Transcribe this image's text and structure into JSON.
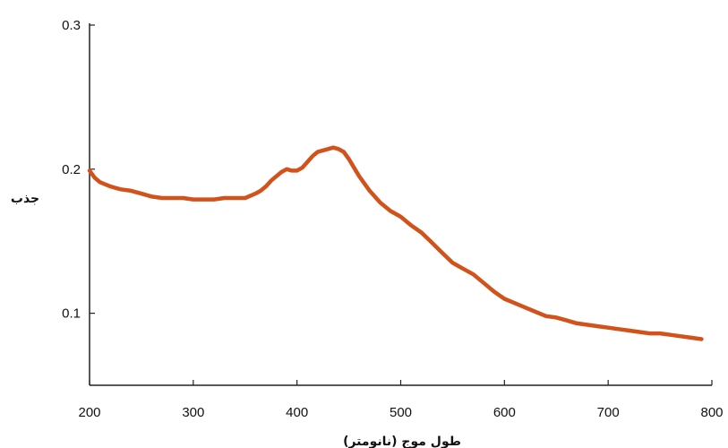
{
  "chart_data": {
    "type": "line",
    "title": "",
    "xlabel": "طول موج (نانومتر)",
    "ylabel": "جذب",
    "xlim": [
      200,
      800
    ],
    "ylim": [
      0.05,
      0.3
    ],
    "x_ticks": [
      200,
      300,
      400,
      500,
      600,
      700,
      800
    ],
    "x_tick_labels": [
      "200",
      "300",
      "400",
      "500",
      "600",
      "700",
      "800"
    ],
    "y_ticks": [
      0.1,
      0.2,
      0.3
    ],
    "y_tick_labels": [
      "0.1",
      "0.2",
      "0.3"
    ],
    "grid": false,
    "legend": "none",
    "series": [
      {
        "color": "#d2521b",
        "x": [
          200,
          205,
          210,
          220,
          230,
          240,
          250,
          260,
          270,
          280,
          290,
          300,
          310,
          320,
          330,
          340,
          350,
          360,
          365,
          370,
          375,
          380,
          385,
          390,
          395,
          400,
          405,
          410,
          415,
          420,
          425,
          430,
          435,
          440,
          445,
          450,
          455,
          460,
          470,
          480,
          490,
          500,
          510,
          520,
          530,
          540,
          550,
          560,
          570,
          580,
          590,
          600,
          610,
          620,
          630,
          640,
          650,
          660,
          670,
          680,
          690,
          700,
          710,
          720,
          730,
          740,
          750,
          760,
          770,
          780,
          790
        ],
        "y": [
          0.199,
          0.194,
          0.191,
          0.188,
          0.186,
          0.185,
          0.183,
          0.181,
          0.18,
          0.18,
          0.18,
          0.179,
          0.179,
          0.179,
          0.18,
          0.18,
          0.18,
          0.183,
          0.185,
          0.188,
          0.192,
          0.195,
          0.198,
          0.2,
          0.199,
          0.199,
          0.201,
          0.205,
          0.209,
          0.212,
          0.213,
          0.214,
          0.215,
          0.214,
          0.212,
          0.207,
          0.201,
          0.195,
          0.185,
          0.177,
          0.171,
          0.167,
          0.161,
          0.156,
          0.149,
          0.142,
          0.135,
          0.131,
          0.127,
          0.121,
          0.115,
          0.11,
          0.107,
          0.104,
          0.101,
          0.098,
          0.097,
          0.095,
          0.093,
          0.092,
          0.091,
          0.09,
          0.089,
          0.088,
          0.087,
          0.086,
          0.086,
          0.085,
          0.084,
          0.083,
          0.082
        ]
      }
    ]
  }
}
